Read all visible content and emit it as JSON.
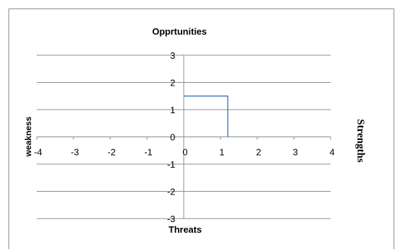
{
  "chart_data": {
    "type": "line",
    "title": "Opprtunities",
    "xlabel": "Threats",
    "left_label": "weakness",
    "right_label": "Strengths",
    "xlim": [
      -4,
      4
    ],
    "ylim": [
      -3,
      3
    ],
    "x_ticks": [
      "-4",
      "-3",
      "-2",
      "-1",
      "0",
      "1",
      "2",
      "3",
      "4"
    ],
    "y_ticks": [
      "-3",
      "-2",
      "-1",
      "0",
      "1",
      "2",
      "3"
    ],
    "grid": true,
    "series": [
      {
        "color": "#4a7ebb",
        "x": [
          0,
          1.2,
          1.2
        ],
        "y": [
          1.5,
          1.5,
          0
        ]
      }
    ]
  }
}
